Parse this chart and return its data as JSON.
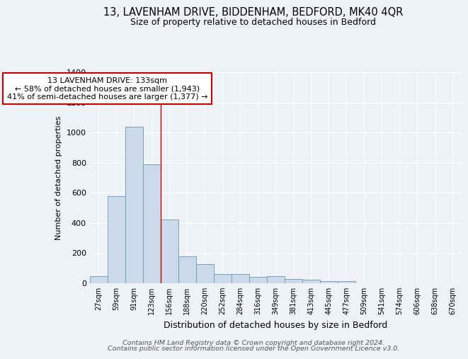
{
  "title_line1": "13, LAVENHAM DRIVE, BIDDENHAM, BEDFORD, MK40 4QR",
  "title_line2": "Size of property relative to detached houses in Bedford",
  "xlabel": "Distribution of detached houses by size in Bedford",
  "ylabel": "Number of detached properties",
  "footnote_line1": "Contains HM Land Registry data © Crown copyright and database right 2024.",
  "footnote_line2": "Contains public sector information licensed under the Open Government Licence v3.0.",
  "annotation_line1": "13 LAVENHAM DRIVE: 133sqm",
  "annotation_line2": "← 58% of detached houses are smaller (1,943)",
  "annotation_line3": "41% of semi-detached houses are larger (1,377) →",
  "bar_labels": [
    "27sqm",
    "59sqm",
    "91sqm",
    "123sqm",
    "156sqm",
    "188sqm",
    "220sqm",
    "252sqm",
    "284sqm",
    "316sqm",
    "349sqm",
    "381sqm",
    "413sqm",
    "445sqm",
    "477sqm",
    "509sqm",
    "541sqm",
    "574sqm",
    "606sqm",
    "638sqm",
    "670sqm"
  ],
  "bar_values": [
    47,
    578,
    1038,
    790,
    422,
    175,
    123,
    60,
    57,
    40,
    47,
    27,
    20,
    10,
    10,
    0,
    0,
    0,
    0,
    0,
    0
  ],
  "bar_color": "#ccd9e8",
  "bar_edge_color": "#6699bb",
  "vline_color": "#cc0000",
  "ylim": [
    0,
    1400
  ],
  "yticks": [
    0,
    200,
    400,
    600,
    800,
    1000,
    1200,
    1400
  ],
  "background_color": "#eef2f7",
  "grid_color": "#ffffff",
  "annotation_box_facecolor": "#ffffff",
  "annotation_box_edgecolor": "#cc0000"
}
